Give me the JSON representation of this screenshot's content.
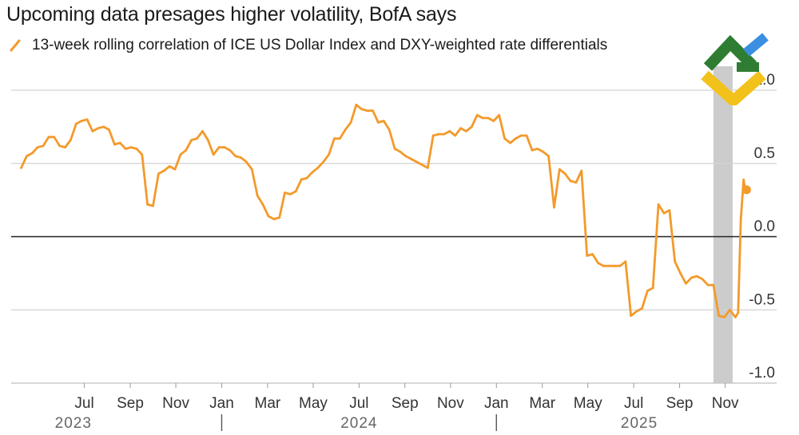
{
  "title": "Upcoming data presages higher volatility, BofA says",
  "legend": {
    "label": "13-week rolling correlation of ICE US Dollar Index and DXY-weighted rate differentials",
    "color": "#f39a2b"
  },
  "colors": {
    "line": "#f39a2b",
    "shade": "#cccccc",
    "grid": "#d3d3d3",
    "zero": "#222222"
  },
  "chart_data": {
    "type": "line",
    "title": "Upcoming data presages higher volatility, BofA says",
    "xlabel": "",
    "ylabel": "",
    "ylim": [
      -1.0,
      1.0
    ],
    "xlim": [
      2023.27,
      2025.93
    ],
    "yticks": [
      {
        "value": 1.0,
        "label": "1.0"
      },
      {
        "value": 0.5,
        "label": "0.5"
      },
      {
        "value": 0.0,
        "label": "0.0"
      },
      {
        "value": -0.5,
        "label": "-0.5"
      },
      {
        "value": -1.0,
        "label": "-1.0"
      }
    ],
    "month_ticks": [
      {
        "x": 2023.5,
        "label": "Jul"
      },
      {
        "x": 2023.667,
        "label": "Sep"
      },
      {
        "x": 2023.833,
        "label": "Nov"
      },
      {
        "x": 2024.0,
        "label": "Jan"
      },
      {
        "x": 2024.167,
        "label": "Mar"
      },
      {
        "x": 2024.333,
        "label": "May"
      },
      {
        "x": 2024.5,
        "label": "Jul"
      },
      {
        "x": 2024.667,
        "label": "Sep"
      },
      {
        "x": 2024.833,
        "label": "Nov"
      },
      {
        "x": 2025.0,
        "label": "Jan"
      },
      {
        "x": 2025.167,
        "label": "Mar"
      },
      {
        "x": 2025.333,
        "label": "May"
      },
      {
        "x": 2025.5,
        "label": "Jul"
      },
      {
        "x": 2025.667,
        "label": "Sep"
      },
      {
        "x": 2025.833,
        "label": "Nov"
      }
    ],
    "year_labels": [
      {
        "x": 2023.46,
        "label": "2023"
      },
      {
        "x": 2024.5,
        "label": "2024"
      },
      {
        "x": 2025.52,
        "label": "2025"
      }
    ],
    "year_separators": [
      2024.0,
      2025.0
    ],
    "shaded_region": [
      2025.79,
      2025.86
    ],
    "series": [
      {
        "name": "13-week rolling correlation of ICE US Dollar Index and DXY-weighted rate differentials",
        "x": [
          2023.27,
          2023.29,
          2023.31,
          2023.33,
          2023.35,
          2023.37,
          2023.39,
          2023.41,
          2023.43,
          2023.45,
          2023.47,
          2023.49,
          2023.51,
          2023.53,
          2023.55,
          2023.57,
          2023.59,
          2023.61,
          2023.63,
          2023.65,
          2023.67,
          2023.69,
          2023.71,
          2023.73,
          2023.75,
          2023.77,
          2023.79,
          2023.81,
          2023.83,
          2023.85,
          2023.87,
          2023.89,
          2023.91,
          2023.93,
          2023.95,
          2023.97,
          2023.99,
          2024.01,
          2024.03,
          2024.05,
          2024.07,
          2024.09,
          2024.11,
          2024.13,
          2024.15,
          2024.17,
          2024.19,
          2024.21,
          2024.23,
          2024.25,
          2024.27,
          2024.29,
          2024.31,
          2024.33,
          2024.35,
          2024.37,
          2024.39,
          2024.41,
          2024.43,
          2024.45,
          2024.47,
          2024.49,
          2024.51,
          2024.53,
          2024.55,
          2024.57,
          2024.59,
          2024.61,
          2024.63,
          2024.65,
          2024.67,
          2024.69,
          2024.71,
          2024.73,
          2024.75,
          2024.77,
          2024.79,
          2024.81,
          2024.83,
          2024.85,
          2024.87,
          2024.89,
          2024.91,
          2024.93,
          2024.95,
          2024.97,
          2024.99,
          2025.01,
          2025.03,
          2025.05,
          2025.07,
          2025.09,
          2025.11,
          2025.13,
          2025.15,
          2025.17,
          2025.19,
          2025.21,
          2025.23,
          2025.25,
          2025.27,
          2025.29,
          2025.31,
          2025.33,
          2025.35,
          2025.37,
          2025.39,
          2025.41,
          2025.43,
          2025.45,
          2025.47,
          2025.49,
          2025.51,
          2025.53,
          2025.55,
          2025.57,
          2025.59,
          2025.61,
          2025.63,
          2025.65,
          2025.67,
          2025.69,
          2025.71,
          2025.73,
          2025.75,
          2025.77,
          2025.79,
          2025.81,
          2025.83,
          2025.85,
          2025.87
        ],
        "y": [
          0.47,
          0.55,
          0.57,
          0.61,
          0.62,
          0.68,
          0.68,
          0.62,
          0.61,
          0.66,
          0.77,
          0.79,
          0.8,
          0.72,
          0.74,
          0.75,
          0.73,
          0.63,
          0.64,
          0.6,
          0.61,
          0.6,
          0.56,
          0.22,
          0.21,
          0.43,
          0.45,
          0.48,
          0.46,
          0.56,
          0.59,
          0.66,
          0.67,
          0.72,
          0.66,
          0.56,
          0.61,
          0.61,
          0.59,
          0.55,
          0.54,
          0.51,
          0.46,
          0.28,
          0.22,
          0.14,
          0.12,
          0.13,
          0.3,
          0.29,
          0.31,
          0.39,
          0.4,
          0.44,
          0.47,
          0.51,
          0.56,
          0.67,
          0.67,
          0.73,
          0.78,
          0.9,
          0.87,
          0.86,
          0.86,
          0.78,
          0.79,
          0.73,
          0.6,
          0.58,
          0.55,
          0.53,
          0.51,
          0.49,
          0.47,
          0.69,
          0.7,
          0.7,
          0.72,
          0.69,
          0.74,
          0.72,
          0.75,
          0.83,
          0.81,
          0.81,
          0.79,
          0.83,
          0.67,
          0.64,
          0.67,
          0.69,
          0.69,
          0.59,
          0.6,
          0.58,
          0.55,
          0.2,
          0.46,
          0.43,
          0.38,
          0.37,
          0.45,
          -0.13,
          -0.12,
          -0.18,
          -0.2,
          -0.2,
          -0.2,
          -0.2,
          -0.17,
          -0.54,
          -0.51,
          -0.49,
          -0.37,
          -0.35,
          0.22,
          0.16,
          0.18,
          -0.17,
          -0.25,
          -0.32,
          -0.28,
          -0.27,
          -0.29,
          -0.33,
          -0.33,
          -0.54,
          -0.55,
          -0.5,
          -0.55
        ]
      }
    ],
    "tail": {
      "x": [
        2025.87,
        2025.88,
        2025.89,
        2025.9,
        2025.905
      ],
      "y": [
        -0.55,
        -0.52,
        0.12,
        0.39,
        0.32
      ]
    },
    "end_marker": {
      "x": 2025.905,
      "y": 0.32
    }
  }
}
